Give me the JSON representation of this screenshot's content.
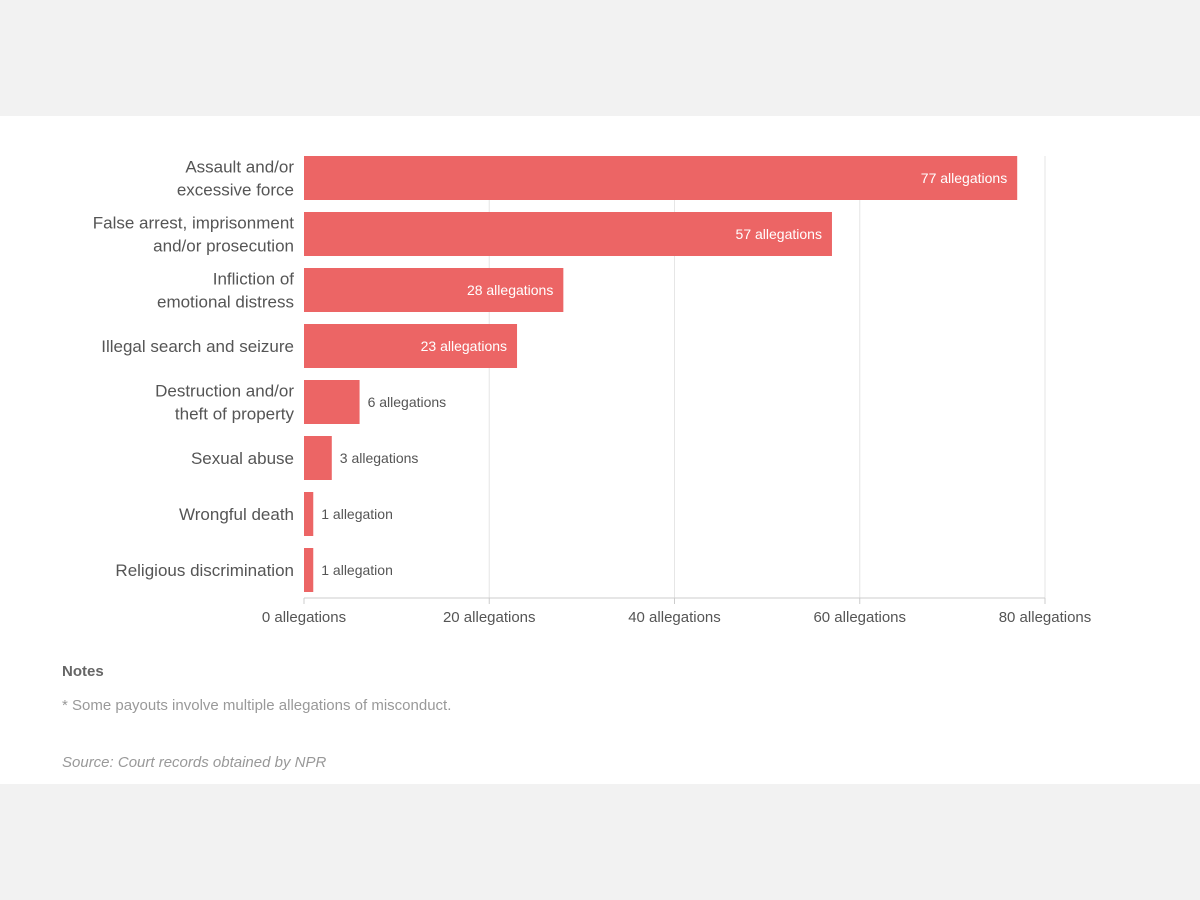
{
  "chart_data": {
    "type": "bar",
    "orientation": "horizontal",
    "categories": [
      [
        "Assault and/or",
        "excessive force"
      ],
      [
        "False arrest, imprisonment",
        "and/or prosecution"
      ],
      [
        "Infliction of",
        "emotional distress"
      ],
      [
        "Illegal search and seizure"
      ],
      [
        "Destruction and/or",
        "theft of property"
      ],
      [
        "Sexual abuse"
      ],
      [
        "Wrongful death"
      ],
      [
        "Religious discrimination"
      ]
    ],
    "values": [
      77,
      57,
      28,
      23,
      6,
      3,
      1,
      1
    ],
    "value_labels": [
      "77 allegations",
      "57 allegations",
      "28 allegations",
      "23 allegations",
      "6 allegations",
      "3 allegations",
      "1 allegation",
      "1 allegation"
    ],
    "xlim": [
      0,
      80
    ],
    "ticks": [
      0,
      20,
      40,
      60,
      80
    ],
    "tick_labels": [
      "0 allegations",
      "20 allegations",
      "40 allegations",
      "60 allegations",
      "80 allegations"
    ],
    "grid": true,
    "bar_color": "#ec6565",
    "xlabel": "",
    "ylabel": ""
  },
  "notes": {
    "title": "Notes",
    "text": "* Some payouts involve multiple allegations of misconduct."
  },
  "source": "Source: Court records obtained by NPR"
}
